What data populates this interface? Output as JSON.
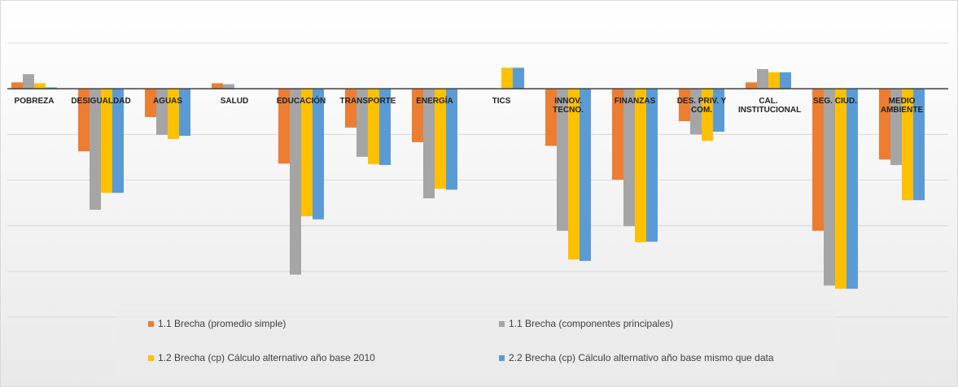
{
  "chart_data": {
    "type": "bar",
    "categories": [
      "POBREZA",
      "DESIGUALDAD",
      "AGUAS",
      "SALUD",
      "EDUCACIÓN",
      "TRANSPORTE",
      "ENERGÍA",
      "TICS",
      "INNOV. TECNO.",
      "FINANZAS",
      "DES. PRIV. Y COM.",
      "CAL. INSTITUCIONAL",
      "SEG. CIUD.",
      "MEDIO AMBIENTE"
    ],
    "series": [
      {
        "name": "1.1 Brecha (promedio simple)",
        "color": "#ED7D31",
        "values": [
          0.14,
          -1.37,
          -0.62,
          0.12,
          -1.64,
          -0.85,
          -1.17,
          0,
          -1.25,
          -1.99,
          -0.71,
          0.14,
          -3.11,
          -1.55
        ]
      },
      {
        "name": "1.1 Brecha (componentes principales)",
        "color": "#A5A5A5",
        "values": [
          0.32,
          -2.65,
          -1.01,
          0.1,
          -4.07,
          -1.49,
          -2.4,
          0,
          -3.11,
          -3.01,
          -1.0,
          0.43,
          -4.31,
          -1.67
        ]
      },
      {
        "name": "1.2 Brecha (cp) Cálculo alternativo año base 2010",
        "color": "#FFC000",
        "values": [
          0.12,
          -2.28,
          -1.1,
          0,
          -2.79,
          -1.65,
          -2.19,
          0.46,
          -3.74,
          -3.36,
          -1.14,
          0.36,
          -4.38,
          -2.44
        ]
      },
      {
        "name": "2.2 Brecha (cp) Cálculo alternativo año base mismo que data",
        "color": "#5B9BD5",
        "values": [
          0.03,
          -2.28,
          -1.03,
          0,
          -2.86,
          -1.67,
          -2.21,
          0.46,
          -3.77,
          -3.35,
          -0.94,
          0.36,
          -4.38,
          -2.44
        ]
      }
    ],
    "ylim": [
      -5,
      1
    ],
    "yticks": [
      -5,
      -4,
      -3,
      -2,
      -1,
      0,
      1
    ],
    "grid": true
  }
}
